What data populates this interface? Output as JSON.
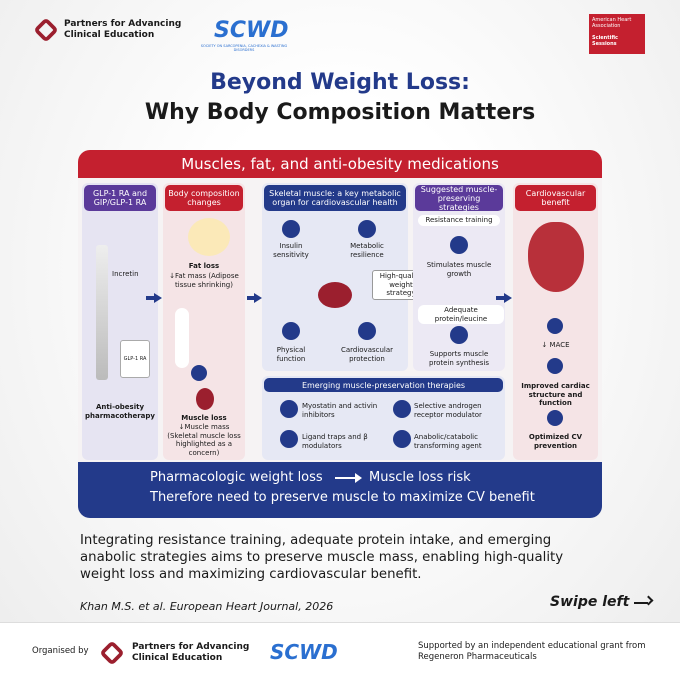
{
  "header": {
    "org": "Partners for Advancing Clinical Education",
    "scwd": "SCWD",
    "scwd_sub": "SOCIETY ON SARCOPENIA, CACHEXIA & WASTING DISORDERS",
    "event_org": "American Heart Association",
    "event": "Scientific Sessions"
  },
  "title": [
    "Beyond Weight Loss:",
    "Why Body Composition Matters"
  ],
  "panel": {
    "title": "Muscles, fat, and anti-obesity medications",
    "columns": [
      {
        "header": "GLP-1 RA and GIP/GLP-1 RA",
        "items": [
          "Incretin",
          "GLP-1 RA",
          "Anti-obesity pharmacotherapy"
        ]
      },
      {
        "header": "Body composition changes",
        "items": [
          "Fat loss",
          "↓Fat mass (Adipose tissue shrinking)",
          "Muscle loss",
          "↓Muscle mass (Skeletal muscle loss highlighted as a concern)"
        ]
      },
      {
        "header": "Skeletal muscle: a key metabolic organ for cardiovascular health",
        "items": [
          "Insulin sensitivity",
          "Metabolic resilience",
          "Physical function",
          "Cardiovascular protection",
          "High-quality weight strategy"
        ]
      },
      {
        "header": "Suggested muscle-preserving strategies",
        "items": [
          "Resistance training",
          "Stimulates muscle growth",
          "Adequate protein/leucine",
          "Supports muscle protein synthesis"
        ]
      },
      {
        "header": "Cardiovascular benefit",
        "items": [
          "↓ MACE",
          "Improved cardiac structure and function",
          "Optimized CV prevention"
        ]
      }
    ],
    "therapies": {
      "title": "Emerging muscle-preservation therapies",
      "items": [
        "Myostatin and activin inhibitors",
        "Selective androgen receptor modulator",
        "Ligand traps and β modulators",
        "Anabolic/catabolic transforming agent"
      ]
    },
    "banner": [
      "Pharmacologic weight loss",
      "Muscle loss risk",
      "Therefore need to preserve muscle to maximize CV benefit"
    ]
  },
  "body": "Integrating resistance training, adequate protein intake, and emerging anabolic strategies aims to preserve muscle mass, enabling high-quality weight loss and maximizing cardiovascular benefit.",
  "citation": "Khan M.S. et al. European Heart Journal, 2026",
  "swipe": "Swipe left",
  "footer": {
    "organised_by": "Organised by",
    "org": "Partners for Advancing Clinical Education",
    "scwd": "SCWD",
    "support": "Supported by an independent educational grant from Regeneron Pharmaceuticals"
  }
}
